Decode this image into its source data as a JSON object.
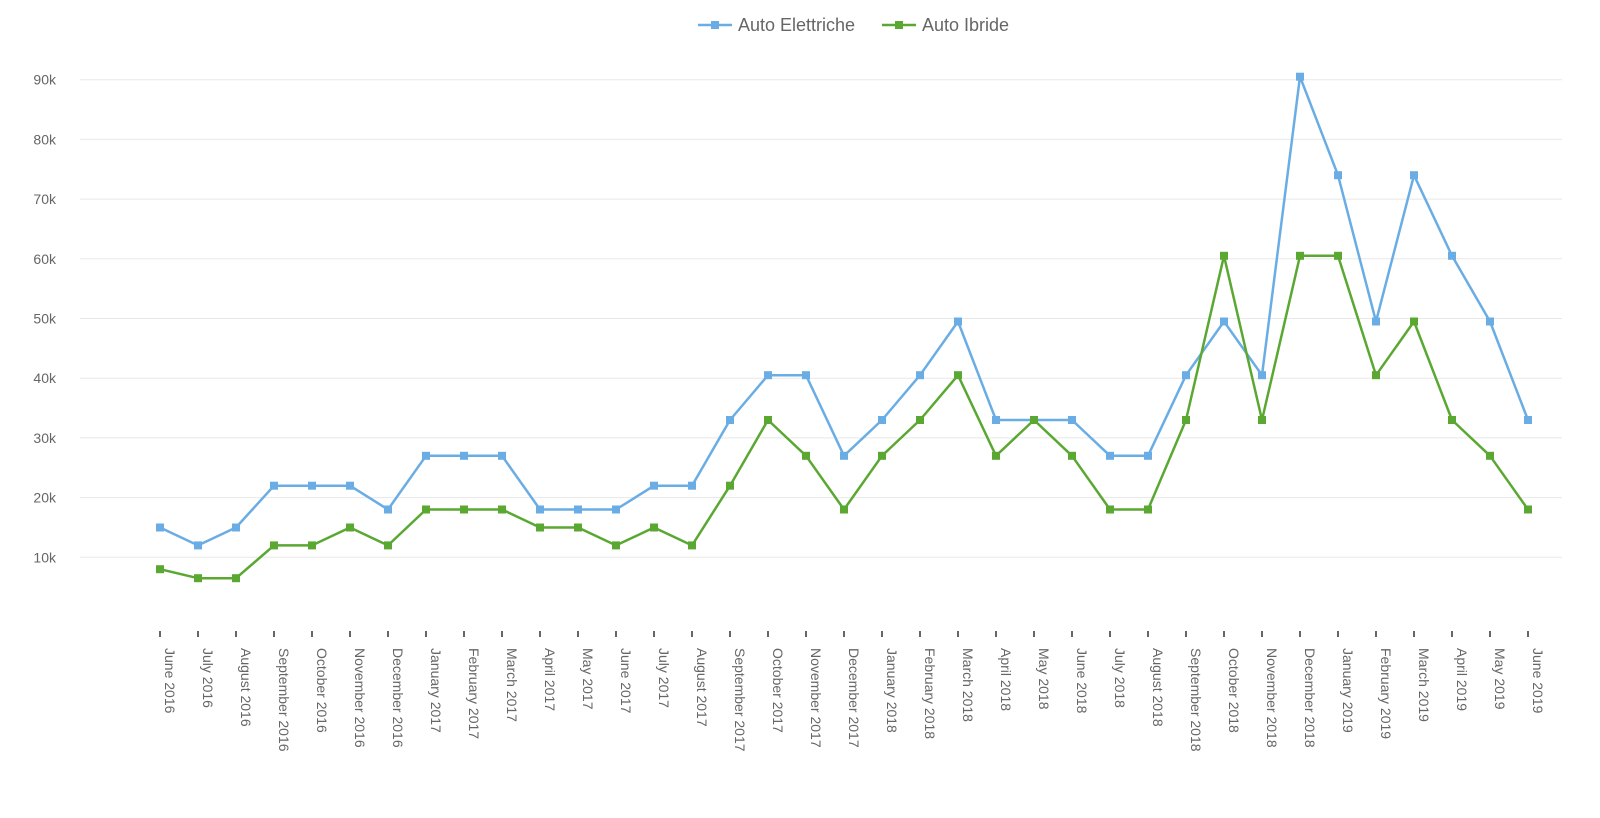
{
  "chart_data": {
    "type": "line",
    "title": "",
    "xlabel": "",
    "ylabel": "",
    "ylim": [
      0,
      95000
    ],
    "y_ticks": [
      10000,
      20000,
      30000,
      40000,
      50000,
      60000,
      70000,
      80000,
      90000
    ],
    "y_tick_labels": [
      "10k",
      "20k",
      "30k",
      "40k",
      "50k",
      "60k",
      "70k",
      "80k",
      "90k"
    ],
    "grid": true,
    "legend": "top-center",
    "categories": [
      "June 2016",
      "July 2016",
      "August 2016",
      "September 2016",
      "October 2016",
      "November 2016",
      "December 2016",
      "January 2017",
      "February 2017",
      "March 2017",
      "April 2017",
      "May 2017",
      "June 2017",
      "July 2017",
      "August 2017",
      "September 2017",
      "October 2017",
      "November 2017",
      "December 2017",
      "January 2018",
      "February 2018",
      "March 2018",
      "April 2018",
      "May 2018",
      "June 2018",
      "July 2018",
      "August 2018",
      "September 2018",
      "October 2018",
      "November 2018",
      "December 2018",
      "January 2019",
      "February 2019",
      "March 2019",
      "April 2019",
      "May 2019",
      "June 2019"
    ],
    "series": [
      {
        "name": "Auto Elettriche",
        "color": "#6aade4",
        "values": [
          15000,
          12000,
          15000,
          22000,
          22000,
          22000,
          18000,
          27000,
          27000,
          27000,
          18000,
          18000,
          18000,
          22000,
          22000,
          33000,
          40500,
          40500,
          27000,
          33000,
          40500,
          49500,
          33000,
          33000,
          33000,
          27000,
          27000,
          40500,
          49500,
          40500,
          90500,
          74000,
          49500,
          74000,
          60500,
          49500,
          33000
        ]
      },
      {
        "name": "Auto Ibride",
        "color": "#5aa832",
        "values": [
          8000,
          6500,
          6500,
          12000,
          12000,
          15000,
          12000,
          18000,
          18000,
          18000,
          15000,
          15000,
          12000,
          15000,
          12000,
          22000,
          33000,
          27000,
          18000,
          27000,
          33000,
          40500,
          27000,
          33000,
          27000,
          18000,
          18000,
          33000,
          60500,
          33000,
          60500,
          60500,
          40500,
          49500,
          33000,
          27000,
          18000
        ]
      }
    ]
  }
}
